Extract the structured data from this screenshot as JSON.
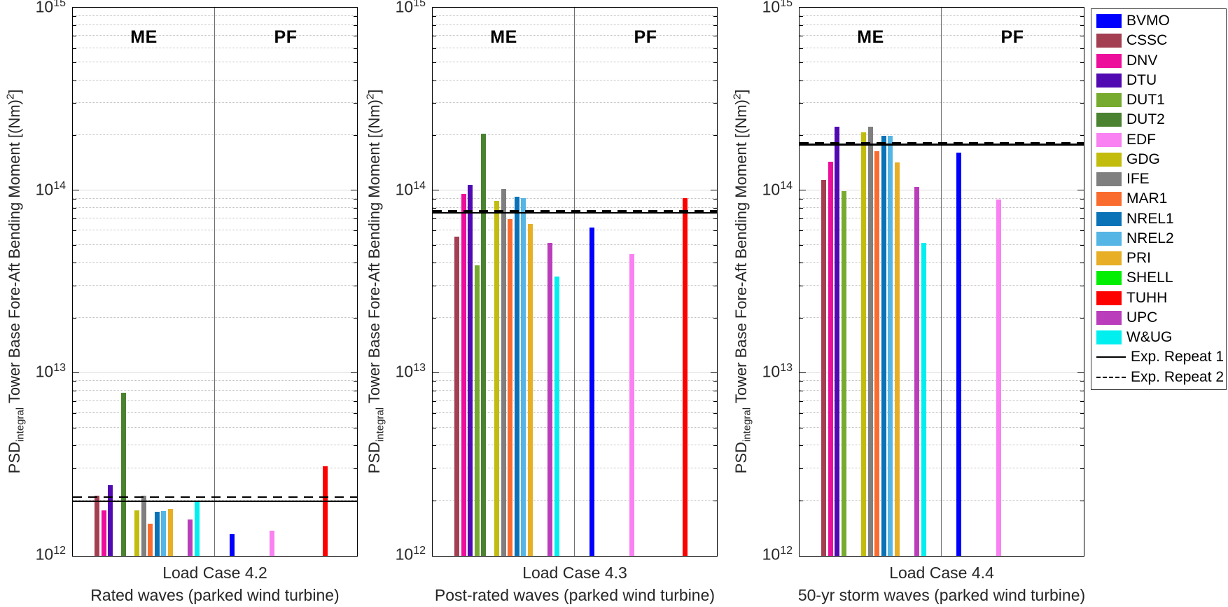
{
  "chart_data": {
    "type": "bar",
    "title": "",
    "yscale": "log",
    "ylim": [
      1000000000000.0,
      1000000000000000.0
    ],
    "y_tick_base": "10",
    "y_tick_exponents": [
      15,
      14,
      13,
      12
    ],
    "grid": "on",
    "legend_position": "outside-right",
    "ylabel": {
      "prefix": "PSD",
      "sub": "integral",
      "middle": " Tower Base Fore-Aft Bending Moment [(Nm)",
      "sup": "2",
      "suffix": "]"
    },
    "participants": [
      {
        "name": "BVMO",
        "color": "#0000FE"
      },
      {
        "name": "CSSC",
        "color": "#A43F52"
      },
      {
        "name": "DNV",
        "color": "#EE0E9C"
      },
      {
        "name": "DTU",
        "color": "#5109B2"
      },
      {
        "name": "DUT1",
        "color": "#77AB2F"
      },
      {
        "name": "DUT2",
        "color": "#4A8230"
      },
      {
        "name": "EDF",
        "color": "#F981F1"
      },
      {
        "name": "GDG",
        "color": "#C2BD0D"
      },
      {
        "name": "IFE",
        "color": "#7F7F7F"
      },
      {
        "name": "MAR1",
        "color": "#FA6C2E"
      },
      {
        "name": "NREL1",
        "color": "#0A73B8"
      },
      {
        "name": "NREL2",
        "color": "#55B5E5"
      },
      {
        "name": "PRI",
        "color": "#E7AE26"
      },
      {
        "name": "SHELL",
        "color": "#02EE03"
      },
      {
        "name": "TUHH",
        "color": "#FD0100"
      },
      {
        "name": "UPC",
        "color": "#BA3EBC"
      },
      {
        "name": "W&UG",
        "color": "#01EFEF"
      }
    ],
    "line_entries": [
      {
        "label": "Exp. Repeat 1",
        "style": "solid"
      },
      {
        "label": "Exp. Repeat 2",
        "style": "dashed"
      }
    ],
    "subplots": [
      {
        "xlabel_line1": "Load Case 4.2",
        "xlabel_line2": "Rated waves (parked wind turbine)",
        "exp_repeat_1": 1970000000000.0,
        "exp_repeat_2": 2080000000000.0,
        "sections": [
          {
            "label": "ME",
            "values": {
              "CSSC": 2130000000000.0,
              "DNV": 1770000000000.0,
              "DTU": 2450000000000.0,
              "DUT2": 7850000000000.0,
              "GDG": 1780000000000.0,
              "IFE": 2130000000000.0,
              "MAR1": 1500000000000.0,
              "NREL1": 1740000000000.0,
              "NREL2": 1760000000000.0,
              "PRI": 1810000000000.0,
              "UPC": 1590000000000.0,
              "W&UG": 2000000000000.0
            }
          },
          {
            "label": "PF",
            "values": {
              "BVMO": 1320000000000.0,
              "EDF": 1370000000000.0,
              "TUHH": 3100000000000.0
            }
          }
        ]
      },
      {
        "xlabel_line1": "Load Case 4.3",
        "xlabel_line2": "Post-rated waves (parked wind turbine)",
        "exp_repeat_1": 75000000000000.0,
        "exp_repeat_2": 77000000000000.0,
        "sections": [
          {
            "label": "ME",
            "values": {
              "CSSC": 56000000000000.0,
              "DNV": 96000000000000.0,
              "DTU": 108000000000000.0,
              "DUT1": 39000000000000.0,
              "DUT2": 205000000000000.0,
              "GDG": 88000000000000.0,
              "IFE": 102000000000000.0,
              "MAR1": 70000000000000.0,
              "NREL1": 93000000000000.0,
              "NREL2": 91000000000000.0,
              "PRI": 66000000000000.0,
              "UPC": 52000000000000.0,
              "W&UG": 34000000000000.0
            }
          },
          {
            "label": "PF",
            "values": {
              "BVMO": 63000000000000.0,
              "EDF": 45000000000000.0,
              "TUHH": 91000000000000.0
            }
          }
        ]
      },
      {
        "xlabel_line1": "Load Case 4.4",
        "xlabel_line2": "50-yr storm waves (parked wind turbine)",
        "exp_repeat_1": 178000000000000.0,
        "exp_repeat_2": 181000000000000.0,
        "sections": [
          {
            "label": "ME",
            "values": {
              "CSSC": 115000000000000.0,
              "DNV": 145000000000000.0,
              "DTU": 225000000000000.0,
              "DUT1": 100000000000000.0,
              "GDG": 210000000000000.0,
              "IFE": 225000000000000.0,
              "MAR1": 165000000000000.0,
              "NREL1": 200000000000000.0,
              "NREL2": 200000000000000.0,
              "PRI": 143000000000000.0,
              "UPC": 105000000000000.0,
              "W&UG": 52000000000000.0
            }
          },
          {
            "label": "PF",
            "values": {
              "BVMO": 162000000000000.0,
              "EDF": 90000000000000.0
            }
          }
        ]
      }
    ]
  }
}
